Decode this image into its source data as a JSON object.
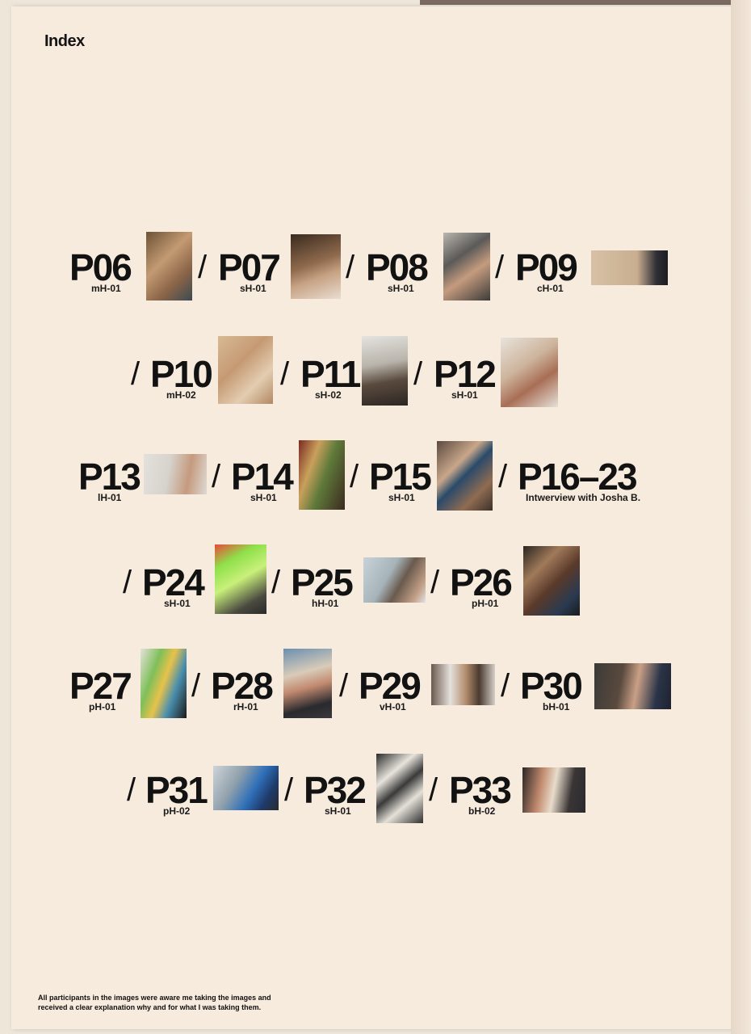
{
  "page": {
    "title": "Index",
    "footnote_line1": "All participants in the images were aware me taking the images and",
    "footnote_line2": "received a clear explanation why and for what I was taking them."
  },
  "entries": {
    "p06": {
      "number": "P06",
      "code": "mH-01"
    },
    "p07": {
      "number": "P07",
      "code": "sH-01"
    },
    "p08": {
      "number": "P08",
      "code": "sH-01"
    },
    "p09": {
      "number": "P09",
      "code": "cH-01"
    },
    "p10": {
      "number": "P10",
      "code": "mH-02"
    },
    "p11": {
      "number": "P11",
      "code": "sH-02"
    },
    "p12": {
      "number": "P12",
      "code": "sH-01"
    },
    "p13": {
      "number": "P13",
      "code": "lH-01"
    },
    "p14": {
      "number": "P14",
      "code": "sH-01"
    },
    "p15": {
      "number": "P15",
      "code": "sH-01"
    },
    "p16": {
      "number": "P16–23",
      "code": "Intwerview with Josha B."
    },
    "p24": {
      "number": "P24",
      "code": "sH-01"
    },
    "p25": {
      "number": "P25",
      "code": "hH-01"
    },
    "p26": {
      "number": "P26",
      "code": "pH-01"
    },
    "p27": {
      "number": "P27",
      "code": "pH-01"
    },
    "p28": {
      "number": "P28",
      "code": "rH-01"
    },
    "p29": {
      "number": "P29",
      "code": "vH-01"
    },
    "p30": {
      "number": "P30",
      "code": "bH-01"
    },
    "p31": {
      "number": "P31",
      "code": "pH-02"
    },
    "p32": {
      "number": "P32",
      "code": "sH-01"
    },
    "p33": {
      "number": "P33",
      "code": "bH-02"
    }
  },
  "separator": "/",
  "colors": {
    "paper": "#f7ebdd",
    "text": "#121212"
  }
}
